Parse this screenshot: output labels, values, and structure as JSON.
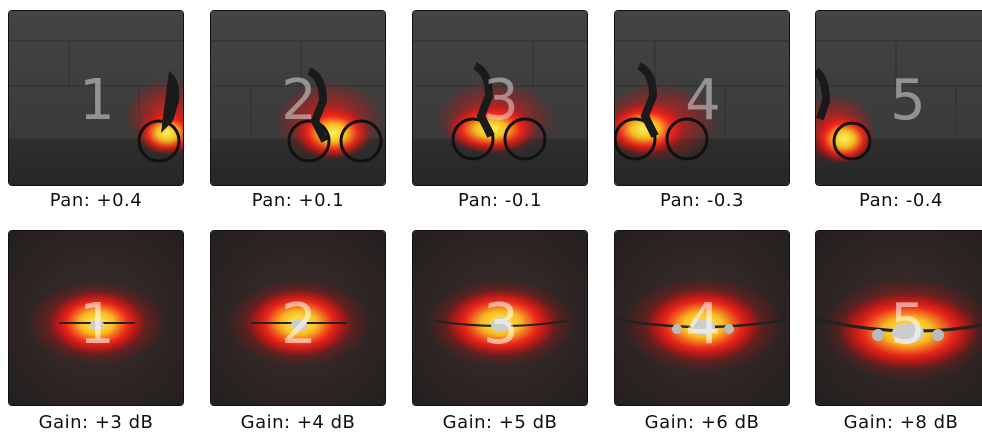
{
  "rows": [
    {
      "name": "bicycle-row",
      "frames": [
        {
          "number": "1",
          "caption": "Pan: +0.4"
        },
        {
          "number": "2",
          "caption": "Pan: +0.1"
        },
        {
          "number": "3",
          "caption": "Pan: -0.1"
        },
        {
          "number": "4",
          "caption": "Pan: -0.3"
        },
        {
          "number": "5",
          "caption": "Pan: -0.4"
        }
      ]
    },
    {
      "name": "airplane-row",
      "frames": [
        {
          "number": "1",
          "caption": "Gain: +3 dB"
        },
        {
          "number": "2",
          "caption": "Gain: +4 dB"
        },
        {
          "number": "3",
          "caption": "Gain: +5 dB"
        },
        {
          "number": "4",
          "caption": "Gain: +6 dB"
        },
        {
          "number": "5",
          "caption": "Gain: +8 dB"
        }
      ]
    }
  ],
  "colors": {
    "wall": "#3d3d3d",
    "ground": "#2b2b2b",
    "night_sky": "#2a2424",
    "heat_red": "#ff1a1a",
    "heat_yellow": "#ffee33"
  }
}
